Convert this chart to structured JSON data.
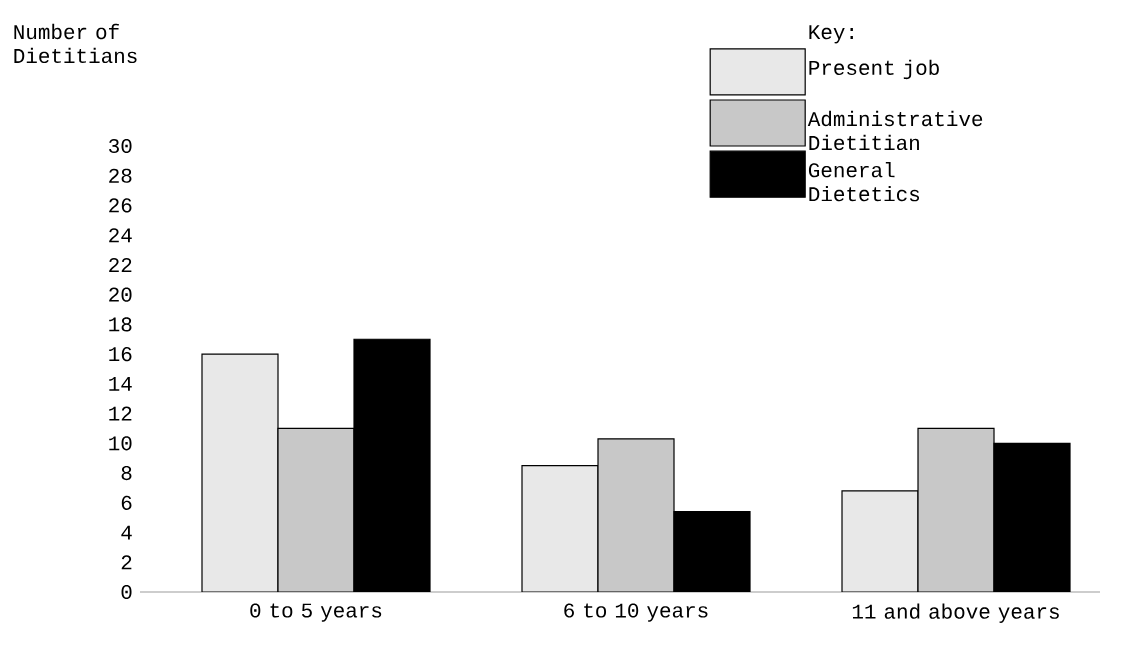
{
  "chart_data": {
    "type": "bar",
    "ylabel": "Number of Dietitians",
    "legend_title": "Key:",
    "categories": [
      "0 to 5 years",
      "6 to 10 years",
      "11 and above years"
    ],
    "series": [
      {
        "name": "Present job",
        "color": "#e8e8e8",
        "values": [
          16,
          8.5,
          6.8
        ]
      },
      {
        "name": "Administrative Dietitian",
        "color": "#c8c8c8",
        "values": [
          11,
          10.3,
          11
        ]
      },
      {
        "name": "General Dietetics",
        "color": "#000000",
        "values": [
          17,
          5.4,
          10
        ]
      }
    ],
    "ylim": [
      0,
      30
    ],
    "yticks": [
      0,
      2,
      4,
      6,
      8,
      10,
      12,
      14,
      16,
      18,
      20,
      22,
      24,
      26,
      28,
      30
    ],
    "legend": "top right",
    "grid": false
  }
}
